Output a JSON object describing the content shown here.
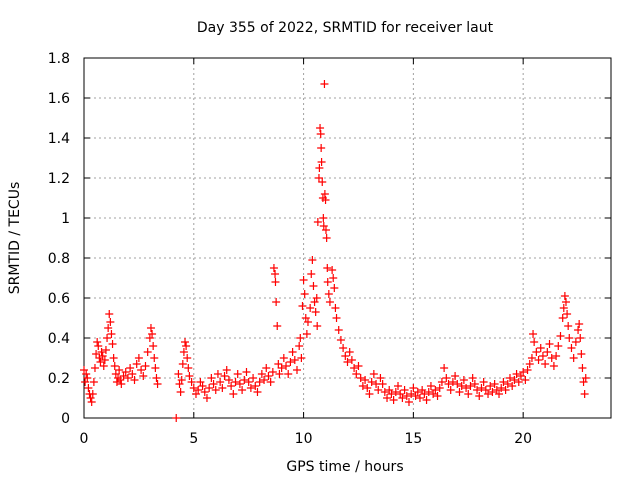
{
  "chart_data": {
    "type": "scatter",
    "title": "Day 355 of 2022, SRMTID for receiver laut",
    "xlabel": "GPS time / hours",
    "ylabel": "SRMTID / TECUs",
    "xlim": [
      0,
      24
    ],
    "ylim": [
      0,
      1.8
    ],
    "x_ticks": [
      0,
      5,
      10,
      15,
      20
    ],
    "y_ticks": [
      0,
      0.2,
      0.4,
      0.6,
      0.8,
      1,
      1.2,
      1.4,
      1.6,
      1.8
    ],
    "x_tick_labels": [
      "0",
      "5",
      "10",
      "15",
      "20"
    ],
    "y_tick_labels": [
      "0",
      "0.2",
      "0.4",
      "0.6",
      "0.8",
      "1",
      "1.2",
      "1.4",
      "1.6",
      "1.8"
    ],
    "grid": true,
    "marker": "+",
    "color": "#ff0000",
    "series": [
      {
        "name": "SRMTID",
        "points": [
          [
            0.0,
            0.24
          ],
          [
            0.05,
            0.18
          ],
          [
            0.1,
            0.22
          ],
          [
            0.15,
            0.2
          ],
          [
            0.2,
            0.15
          ],
          [
            0.25,
            0.12
          ],
          [
            0.3,
            0.1
          ],
          [
            0.35,
            0.08
          ],
          [
            0.4,
            0.12
          ],
          [
            0.45,
            0.18
          ],
          [
            0.5,
            0.25
          ],
          [
            0.55,
            0.32
          ],
          [
            0.6,
            0.38
          ],
          [
            0.65,
            0.36
          ],
          [
            0.7,
            0.3
          ],
          [
            0.75,
            0.28
          ],
          [
            0.8,
            0.33
          ],
          [
            0.85,
            0.31
          ],
          [
            0.9,
            0.26
          ],
          [
            0.95,
            0.29
          ],
          [
            1.0,
            0.34
          ],
          [
            1.05,
            0.4
          ],
          [
            1.1,
            0.45
          ],
          [
            1.15,
            0.52
          ],
          [
            1.2,
            0.48
          ],
          [
            1.25,
            0.42
          ],
          [
            1.3,
            0.37
          ],
          [
            1.35,
            0.3
          ],
          [
            1.4,
            0.26
          ],
          [
            1.45,
            0.22
          ],
          [
            1.5,
            0.18
          ],
          [
            1.55,
            0.2
          ],
          [
            1.6,
            0.24
          ],
          [
            1.65,
            0.19
          ],
          [
            1.7,
            0.17
          ],
          [
            1.8,
            0.21
          ],
          [
            1.9,
            0.23
          ],
          [
            2.0,
            0.2
          ],
          [
            2.1,
            0.25
          ],
          [
            2.2,
            0.22
          ],
          [
            2.3,
            0.19
          ],
          [
            2.4,
            0.27
          ],
          [
            2.5,
            0.3
          ],
          [
            2.6,
            0.24
          ],
          [
            2.7,
            0.21
          ],
          [
            2.8,
            0.26
          ],
          [
            2.9,
            0.33
          ],
          [
            3.0,
            0.4
          ],
          [
            3.05,
            0.45
          ],
          [
            3.1,
            0.42
          ],
          [
            3.15,
            0.36
          ],
          [
            3.2,
            0.3
          ],
          [
            3.25,
            0.25
          ],
          [
            3.3,
            0.2
          ],
          [
            3.35,
            0.17
          ],
          [
            4.2,
            0.0
          ],
          [
            4.3,
            0.22
          ],
          [
            4.35,
            0.17
          ],
          [
            4.4,
            0.13
          ],
          [
            4.45,
            0.19
          ],
          [
            4.5,
            0.27
          ],
          [
            4.55,
            0.33
          ],
          [
            4.6,
            0.38
          ],
          [
            4.65,
            0.36
          ],
          [
            4.7,
            0.3
          ],
          [
            4.75,
            0.25
          ],
          [
            4.8,
            0.21
          ],
          [
            4.9,
            0.18
          ],
          [
            5.0,
            0.15
          ],
          [
            5.1,
            0.12
          ],
          [
            5.2,
            0.14
          ],
          [
            5.3,
            0.18
          ],
          [
            5.4,
            0.16
          ],
          [
            5.5,
            0.13
          ],
          [
            5.6,
            0.1
          ],
          [
            5.7,
            0.15
          ],
          [
            5.8,
            0.2
          ],
          [
            5.9,
            0.17
          ],
          [
            6.0,
            0.14
          ],
          [
            6.1,
            0.22
          ],
          [
            6.2,
            0.18
          ],
          [
            6.3,
            0.15
          ],
          [
            6.4,
            0.21
          ],
          [
            6.5,
            0.24
          ],
          [
            6.6,
            0.19
          ],
          [
            6.7,
            0.16
          ],
          [
            6.8,
            0.12
          ],
          [
            6.9,
            0.18
          ],
          [
            7.0,
            0.22
          ],
          [
            7.1,
            0.17
          ],
          [
            7.2,
            0.14
          ],
          [
            7.3,
            0.19
          ],
          [
            7.4,
            0.23
          ],
          [
            7.5,
            0.18
          ],
          [
            7.6,
            0.15
          ],
          [
            7.7,
            0.2
          ],
          [
            7.8,
            0.16
          ],
          [
            7.9,
            0.13
          ],
          [
            8.0,
            0.18
          ],
          [
            8.1,
            0.22
          ],
          [
            8.2,
            0.19
          ],
          [
            8.3,
            0.25
          ],
          [
            8.4,
            0.21
          ],
          [
            8.5,
            0.18
          ],
          [
            8.6,
            0.23
          ],
          [
            8.65,
            0.75
          ],
          [
            8.7,
            0.72
          ],
          [
            8.72,
            0.68
          ],
          [
            8.75,
            0.58
          ],
          [
            8.8,
            0.46
          ],
          [
            8.85,
            0.27
          ],
          [
            8.9,
            0.22
          ],
          [
            9.0,
            0.25
          ],
          [
            9.1,
            0.3
          ],
          [
            9.2,
            0.26
          ],
          [
            9.3,
            0.22
          ],
          [
            9.4,
            0.28
          ],
          [
            9.5,
            0.33
          ],
          [
            9.6,
            0.29
          ],
          [
            9.7,
            0.24
          ],
          [
            9.8,
            0.36
          ],
          [
            9.85,
            0.4
          ],
          [
            9.9,
            0.3
          ],
          [
            9.95,
            0.56
          ],
          [
            10.0,
            0.69
          ],
          [
            10.05,
            0.62
          ],
          [
            10.1,
            0.5
          ],
          [
            10.15,
            0.42
          ],
          [
            10.2,
            0.48
          ],
          [
            10.3,
            0.55
          ],
          [
            10.35,
            0.72
          ],
          [
            10.4,
            0.79
          ],
          [
            10.45,
            0.66
          ],
          [
            10.5,
            0.58
          ],
          [
            10.55,
            0.53
          ],
          [
            10.6,
            0.6
          ],
          [
            10.62,
            0.46
          ],
          [
            10.65,
            0.98
          ],
          [
            10.7,
            1.2
          ],
          [
            10.72,
            1.25
          ],
          [
            10.75,
            1.45
          ],
          [
            10.78,
            1.42
          ],
          [
            10.8,
            1.35
          ],
          [
            10.82,
            1.28
          ],
          [
            10.85,
            1.18
          ],
          [
            10.88,
            1.1
          ],
          [
            10.9,
            1.0
          ],
          [
            10.92,
            0.96
          ],
          [
            10.95,
            1.67
          ],
          [
            10.97,
            1.12
          ],
          [
            11.0,
            1.09
          ],
          [
            11.02,
            0.94
          ],
          [
            11.05,
            0.9
          ],
          [
            11.08,
            0.75
          ],
          [
            11.1,
            0.68
          ],
          [
            11.15,
            0.62
          ],
          [
            11.2,
            0.58
          ],
          [
            11.3,
            0.74
          ],
          [
            11.35,
            0.7
          ],
          [
            11.4,
            0.65
          ],
          [
            11.45,
            0.55
          ],
          [
            11.5,
            0.5
          ],
          [
            11.6,
            0.44
          ],
          [
            11.7,
            0.39
          ],
          [
            11.8,
            0.35
          ],
          [
            11.9,
            0.31
          ],
          [
            12.0,
            0.28
          ],
          [
            12.1,
            0.33
          ],
          [
            12.2,
            0.29
          ],
          [
            12.3,
            0.25
          ],
          [
            12.4,
            0.22
          ],
          [
            12.5,
            0.26
          ],
          [
            12.6,
            0.2
          ],
          [
            12.7,
            0.16
          ],
          [
            12.8,
            0.19
          ],
          [
            12.9,
            0.15
          ],
          [
            13.0,
            0.12
          ],
          [
            13.1,
            0.18
          ],
          [
            13.2,
            0.22
          ],
          [
            13.3,
            0.17
          ],
          [
            13.4,
            0.14
          ],
          [
            13.5,
            0.2
          ],
          [
            13.6,
            0.17
          ],
          [
            13.7,
            0.13
          ],
          [
            13.8,
            0.1
          ],
          [
            13.9,
            0.14
          ],
          [
            14.0,
            0.12
          ],
          [
            14.1,
            0.09
          ],
          [
            14.2,
            0.13
          ],
          [
            14.3,
            0.16
          ],
          [
            14.4,
            0.12
          ],
          [
            14.5,
            0.1
          ],
          [
            14.6,
            0.14
          ],
          [
            14.7,
            0.11
          ],
          [
            14.8,
            0.08
          ],
          [
            14.9,
            0.12
          ],
          [
            15.0,
            0.15
          ],
          [
            15.1,
            0.11
          ],
          [
            15.2,
            0.13
          ],
          [
            15.3,
            0.1
          ],
          [
            15.4,
            0.14
          ],
          [
            15.5,
            0.12
          ],
          [
            15.6,
            0.09
          ],
          [
            15.7,
            0.13
          ],
          [
            15.8,
            0.16
          ],
          [
            15.9,
            0.12
          ],
          [
            16.0,
            0.14
          ],
          [
            16.1,
            0.11
          ],
          [
            16.2,
            0.15
          ],
          [
            16.3,
            0.18
          ],
          [
            16.4,
            0.25
          ],
          [
            16.5,
            0.2
          ],
          [
            16.6,
            0.17
          ],
          [
            16.7,
            0.14
          ],
          [
            16.8,
            0.18
          ],
          [
            16.9,
            0.21
          ],
          [
            17.0,
            0.17
          ],
          [
            17.1,
            0.13
          ],
          [
            17.2,
            0.16
          ],
          [
            17.3,
            0.19
          ],
          [
            17.4,
            0.15
          ],
          [
            17.5,
            0.12
          ],
          [
            17.6,
            0.16
          ],
          [
            17.7,
            0.2
          ],
          [
            17.8,
            0.17
          ],
          [
            17.9,
            0.14
          ],
          [
            18.0,
            0.11
          ],
          [
            18.1,
            0.15
          ],
          [
            18.2,
            0.18
          ],
          [
            18.3,
            0.14
          ],
          [
            18.4,
            0.12
          ],
          [
            18.5,
            0.16
          ],
          [
            18.6,
            0.13
          ],
          [
            18.7,
            0.17
          ],
          [
            18.8,
            0.14
          ],
          [
            18.9,
            0.12
          ],
          [
            19.0,
            0.15
          ],
          [
            19.1,
            0.18
          ],
          [
            19.2,
            0.14
          ],
          [
            19.3,
            0.17
          ],
          [
            19.4,
            0.2
          ],
          [
            19.5,
            0.16
          ],
          [
            19.6,
            0.19
          ],
          [
            19.7,
            0.22
          ],
          [
            19.8,
            0.18
          ],
          [
            19.9,
            0.21
          ],
          [
            20.0,
            0.23
          ],
          [
            20.1,
            0.19
          ],
          [
            20.2,
            0.24
          ],
          [
            20.3,
            0.27
          ],
          [
            20.4,
            0.3
          ],
          [
            20.45,
            0.42
          ],
          [
            20.5,
            0.38
          ],
          [
            20.6,
            0.33
          ],
          [
            20.7,
            0.29
          ],
          [
            20.8,
            0.35
          ],
          [
            20.9,
            0.31
          ],
          [
            21.0,
            0.27
          ],
          [
            21.1,
            0.33
          ],
          [
            21.2,
            0.37
          ],
          [
            21.3,
            0.3
          ],
          [
            21.4,
            0.26
          ],
          [
            21.5,
            0.31
          ],
          [
            21.6,
            0.36
          ],
          [
            21.7,
            0.41
          ],
          [
            21.8,
            0.5
          ],
          [
            21.85,
            0.55
          ],
          [
            21.9,
            0.61
          ],
          [
            21.95,
            0.58
          ],
          [
            22.0,
            0.52
          ],
          [
            22.05,
            0.46
          ],
          [
            22.1,
            0.4
          ],
          [
            22.2,
            0.35
          ],
          [
            22.3,
            0.3
          ],
          [
            22.4,
            0.38
          ],
          [
            22.5,
            0.44
          ],
          [
            22.55,
            0.47
          ],
          [
            22.6,
            0.4
          ],
          [
            22.65,
            0.32
          ],
          [
            22.7,
            0.25
          ],
          [
            22.75,
            0.18
          ],
          [
            22.8,
            0.12
          ],
          [
            22.85,
            0.2
          ]
        ]
      }
    ]
  }
}
